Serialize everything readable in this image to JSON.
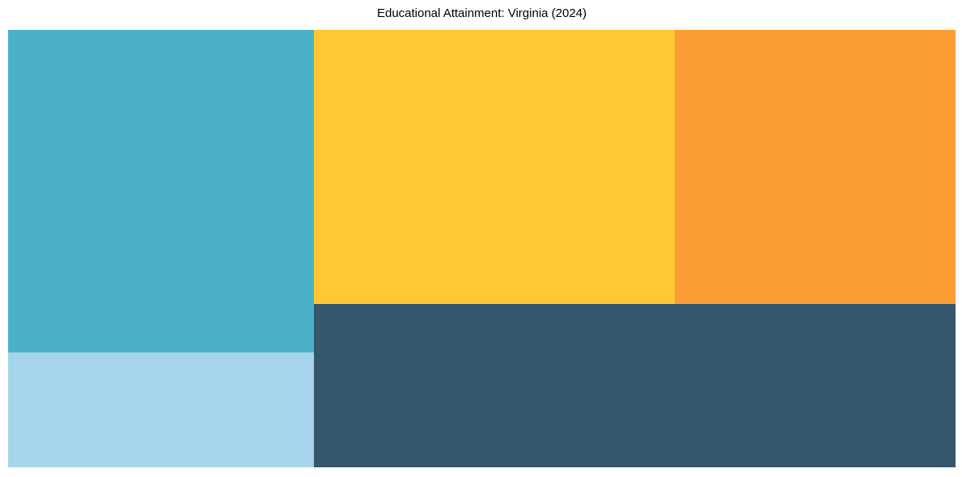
{
  "page": {
    "background_color": "#ffffff"
  },
  "chart_data": {
    "type": "treemap",
    "title": "Educational Attainment: Virginia (2024)",
    "title_color": "#000000",
    "legend": "none",
    "axes": "none",
    "tiles_unlabeled": true,
    "tiles": [
      {
        "id": "teal",
        "label": "",
        "color": "#4bb1c6",
        "share_pct_est": 23.8,
        "x_pct": 0,
        "y_pct": 0,
        "w_pct": 32.28,
        "h_pct": 73.8
      },
      {
        "id": "light-blue",
        "label": "",
        "color": "#a6d4ea",
        "share_pct_est": 8.5,
        "x_pct": 0,
        "y_pct": 73.8,
        "w_pct": 32.28,
        "h_pct": 26.2
      },
      {
        "id": "yellow",
        "label": "",
        "color": "#ffc733",
        "share_pct_est": 23.9,
        "x_pct": 32.28,
        "y_pct": 0,
        "w_pct": 38.09,
        "h_pct": 62.7
      },
      {
        "id": "orange",
        "label": "",
        "color": "#fb9d35",
        "share_pct_est": 18.6,
        "x_pct": 70.37,
        "y_pct": 0,
        "w_pct": 29.63,
        "h_pct": 62.7
      },
      {
        "id": "dark-slate",
        "label": "",
        "color": "#36576b",
        "share_pct_est": 25.3,
        "x_pct": 32.28,
        "y_pct": 62.7,
        "w_pct": 67.72,
        "h_pct": 37.3
      }
    ]
  }
}
